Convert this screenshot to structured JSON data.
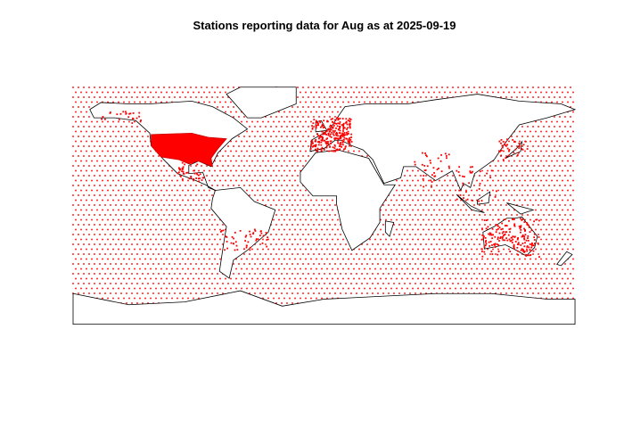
{
  "title": "Stations reporting data for Aug as at 2025-09-19"
}
